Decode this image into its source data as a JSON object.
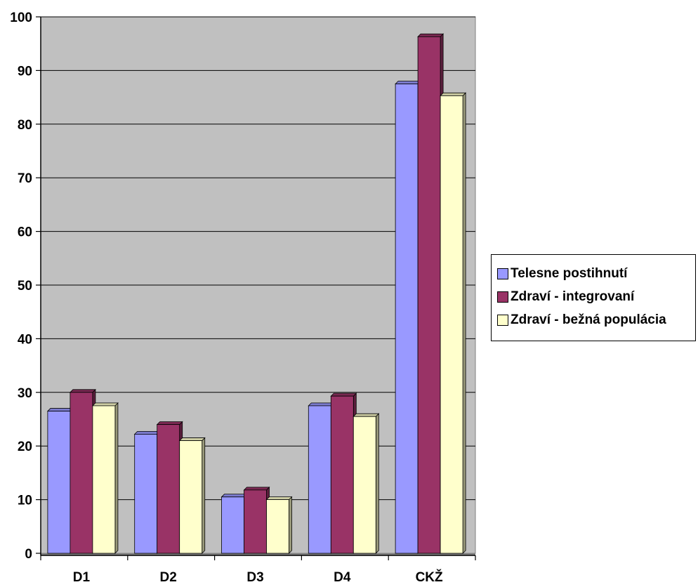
{
  "chart_data": {
    "type": "bar",
    "categories": [
      "D1",
      "D2",
      "D3",
      "D4",
      "CKŽ"
    ],
    "series": [
      {
        "name": "Telesne postihnutí",
        "values": [
          26.5,
          22.2,
          10.5,
          27.5,
          87.5
        ],
        "color": "#9999ff"
      },
      {
        "name": "Zdraví - integrovaní",
        "values": [
          30.0,
          24.0,
          11.8,
          29.3,
          96.3
        ],
        "color": "#993366"
      },
      {
        "name": "Zdraví - bežná populácia",
        "values": [
          27.5,
          21.0,
          10.0,
          25.5,
          85.3
        ],
        "color": "#ffffcc"
      }
    ],
    "ylim": [
      0,
      100
    ],
    "yticks": [
      0,
      10,
      20,
      30,
      40,
      50,
      60,
      70,
      80,
      90,
      100
    ],
    "grid": true,
    "legend_position": "right",
    "plot_background": "#c0c0c0",
    "style": "3d-clustered"
  }
}
